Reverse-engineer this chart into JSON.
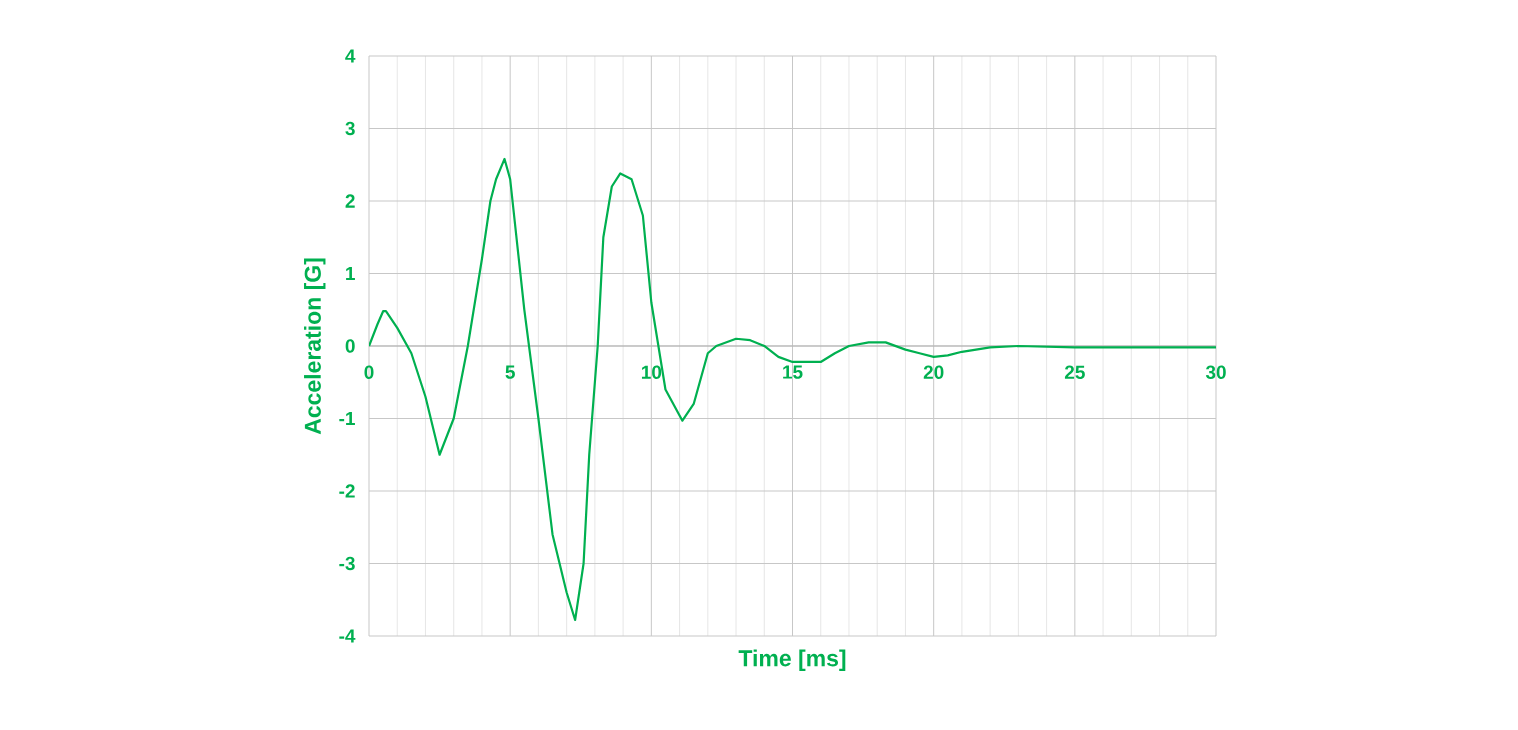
{
  "chart_data": {
    "type": "line",
    "xlabel": "Time [ms]",
    "ylabel": "Acceleration [G]",
    "xlim": [
      0,
      30
    ],
    "xticks": [
      0,
      5,
      10,
      15,
      20,
      25,
      30
    ],
    "ylim": [
      -4,
      4
    ],
    "yticks": [
      -4,
      -3,
      -2,
      -1,
      0,
      1,
      2,
      3,
      4
    ],
    "grid": true,
    "series": [
      {
        "color": "#00b050",
        "x": [
          0,
          0.3,
          0.5,
          0.6,
          1.0,
          1.5,
          2.0,
          2.5,
          3.0,
          3.5,
          4.0,
          4.3,
          4.5,
          4.8,
          5.0,
          5.5,
          6.0,
          6.5,
          7.0,
          7.3,
          7.6,
          7.8,
          8.1,
          8.3,
          8.6,
          8.9,
          9.3,
          9.7,
          10.0,
          10.5,
          11.1,
          11.5,
          12.0,
          12.3,
          13.0,
          13.5,
          14.0,
          14.5,
          15.0,
          16.0,
          16.5,
          17.0,
          17.7,
          18.3,
          19.0,
          19.5,
          20.0,
          20.5,
          21.0,
          22.0,
          23.0,
          25.0,
          28.0,
          30.0
        ],
        "values": [
          0,
          0.3,
          0.48,
          0.48,
          0.25,
          -0.1,
          -0.7,
          -1.5,
          -1.0,
          0.0,
          1.2,
          2.0,
          2.3,
          2.58,
          2.3,
          0.5,
          -1.0,
          -2.6,
          -3.4,
          -3.78,
          -3.0,
          -1.5,
          0.0,
          1.5,
          2.2,
          2.38,
          2.3,
          1.8,
          0.6,
          -0.6,
          -1.03,
          -0.8,
          -0.1,
          0.0,
          0.1,
          0.08,
          0.0,
          -0.15,
          -0.22,
          -0.22,
          -0.1,
          0.0,
          0.05,
          0.05,
          -0.05,
          -0.1,
          -0.15,
          -0.13,
          -0.08,
          -0.02,
          0.0,
          -0.02,
          -0.02,
          -0.02
        ]
      }
    ]
  }
}
